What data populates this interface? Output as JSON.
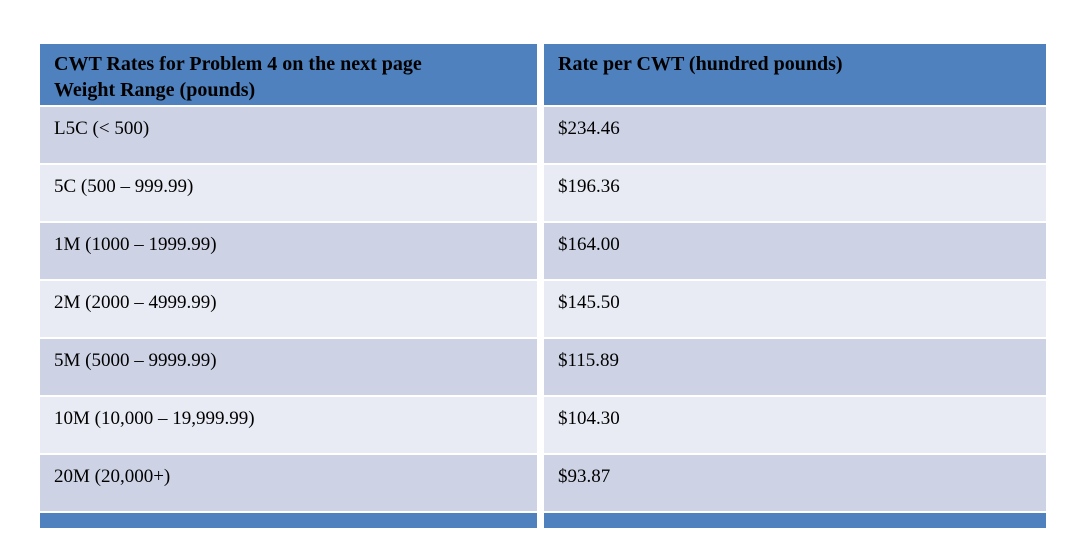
{
  "table": {
    "header": {
      "weight_col_line1": "CWT Rates for Problem 4 on the next page",
      "weight_col_line2": "Weight Range (pounds)",
      "rate_col": "Rate per CWT (hundred pounds)"
    },
    "rows": [
      {
        "weight_range": "L5C (< 500)",
        "rate": "$234.46"
      },
      {
        "weight_range": "5C (500 – 999.99)",
        "rate": "$196.36"
      },
      {
        "weight_range": "1M (1000 – 1999.99)",
        "rate": "$164.00"
      },
      {
        "weight_range": "2M (2000 – 4999.99)",
        "rate": "$145.50"
      },
      {
        "weight_range": "5M (5000 – 9999.99)",
        "rate": "$115.89"
      },
      {
        "weight_range": "10M (10,000 – 19,999.99)",
        "rate": "$104.30"
      },
      {
        "weight_range": "20M (20,000+)",
        "rate": "$93.87"
      }
    ],
    "colors": {
      "header_blue": "#4E81BD",
      "footer_blue": "#4E81BD",
      "row_band_dark": "#CDD3E5",
      "row_band_light": "#E9EBF4",
      "text": "#000000",
      "page_background": "#FFFFFF"
    }
  }
}
